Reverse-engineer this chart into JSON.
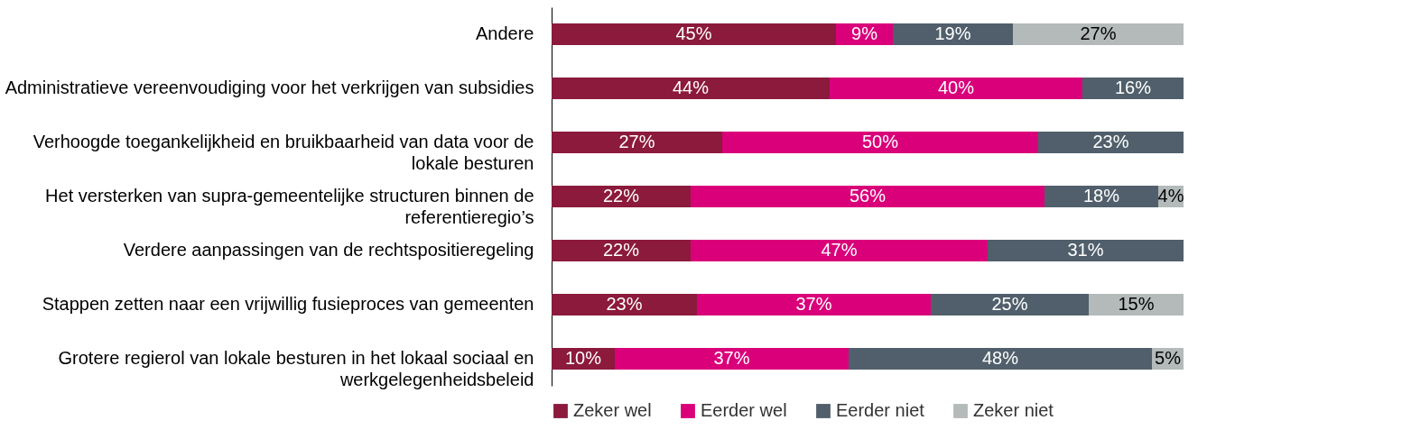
{
  "chart_data": {
    "type": "bar",
    "orientation": "horizontal",
    "stacked": true,
    "legend": "bottom",
    "grid": false,
    "categories": [
      "Andere",
      "Administratieve vereenvoudiging voor het verkrijgen van subsidies",
      "Verhoogde toegankelijkheid en bruikbaarheid van data voor de lokale besturen",
      "Het versterken van supra-gemeentelijke structuren binnen de referentieregio’s",
      "Verdere aanpassingen van de rechtspositieregeling",
      "Stappen zetten naar een vrijwillig fusieproces van gemeenten",
      "Grotere regierol van lokale besturen in het lokaal sociaal en werkgelegenheidsbeleid"
    ],
    "series": [
      {
        "name": "Zeker wel",
        "color": "#8b1a3c",
        "values": [
          45,
          44,
          27,
          22,
          22,
          23,
          10
        ],
        "value_labels": [
          "45%",
          "44%",
          "27%",
          "22%",
          "22%",
          "23%",
          "10%"
        ]
      },
      {
        "name": "Eerder wel",
        "color": "#d9007a",
        "values": [
          9,
          40,
          50,
          56,
          47,
          37,
          37
        ],
        "value_labels": [
          "9%",
          "40%",
          "50%",
          "56%",
          "47%",
          "37%",
          "37%"
        ]
      },
      {
        "name": "Eerder niet",
        "color": "#505f6b",
        "values": [
          19,
          16,
          23,
          18,
          31,
          25,
          48
        ],
        "value_labels": [
          "19%",
          "16%",
          "23%",
          "18%",
          "31%",
          "25%",
          "48%"
        ]
      },
      {
        "name": "Zeker niet",
        "color": "#b4b9b9",
        "values": [
          27,
          null,
          null,
          4,
          null,
          15,
          5
        ],
        "value_labels": [
          "27%",
          null,
          null,
          "4%",
          null,
          "15%",
          "5%"
        ]
      }
    ]
  }
}
